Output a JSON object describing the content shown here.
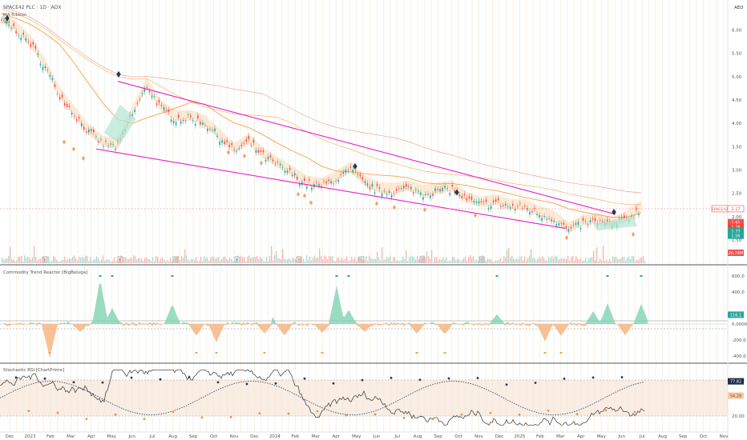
{
  "header": {
    "symbol_line": "SPACE42 PLC · 1D · ADX",
    "indicator_1": "MA Ribbon",
    "indicator_2": "Vol",
    "currency": "AED"
  },
  "colors": {
    "up": "#26a69a",
    "down": "#ef5350",
    "magenta": "#e91ec8",
    "orange": "#f7a24a",
    "navy": "#1d3a5c",
    "marker_up": "#f2a06a",
    "marker_down": "#1f3b5a",
    "green_area": "#b2e6d4",
    "orange_area": "#f9d9b5",
    "ctr_pos": "#7fd3b3",
    "ctr_neg": "#f5b27a",
    "rsi_line": "#333333",
    "rsi_band": "#f6e6d8"
  },
  "price_panel": {
    "y_ticks": [
      "6.00",
      "5.50",
      "5.00",
      "4.50",
      "4.00",
      "3.50",
      "3.00",
      "2.50",
      "2.00",
      "1.50"
    ],
    "badges": [
      {
        "label": "SPACE42",
        "value": "2.17",
        "color": "#ef5350",
        "text_color": "#ef5350"
      },
      {
        "label": "",
        "value": "1.91",
        "color": "#ef5350",
        "text_color": "#ffffff"
      },
      {
        "label": "",
        "value": "1.78",
        "color": "#f44336",
        "text_color": "#ffffff"
      },
      {
        "label": "",
        "value": "1.77",
        "color": "#26a69a",
        "text_color": "#ffffff"
      },
      {
        "label": "",
        "value": "1.56",
        "color": "#26a69a",
        "text_color": "#ffffff"
      },
      {
        "label": "",
        "value": "26.78M",
        "color": "#ef5350",
        "text_color": "#ffffff"
      }
    ],
    "earnings_label": "E"
  },
  "ctr_panel": {
    "title": "Commodity Trend Reactor [BigBeluga]",
    "y_ticks": [
      "600.0",
      "400.0",
      "0.0000",
      "-200.0",
      "-400.0"
    ],
    "badge_value": "116.1"
  },
  "rsi_panel": {
    "title": "Stochastic RSI [ChartPrime]",
    "y_ticks": [
      "80.00",
      "20.00"
    ],
    "badge_top": "77.82",
    "badge_mid": "54.28"
  },
  "x_axis": {
    "labels": [
      "Dec",
      "2023",
      "Feb",
      "Mar",
      "Apr",
      "May",
      "Jun",
      "Jul",
      "Aug",
      "Sep",
      "Oct",
      "Nov",
      "Dec",
      "2024",
      "Feb",
      "Mar",
      "Apr",
      "May",
      "Jun",
      "Jul",
      "Aug",
      "Sep",
      "Oct",
      "Nov",
      "Dec",
      "2025",
      "Feb",
      "Mar",
      "Apr",
      "May",
      "Jun",
      "Jul",
      "Aug",
      "Sep",
      "Oct",
      "Nov"
    ]
  },
  "chart_data": {
    "type": "line",
    "title": "SPACE42 PLC · 1D · ADX",
    "x_months": [
      "Dec",
      "2023",
      "Feb",
      "Mar",
      "Apr",
      "May",
      "Jun",
      "Jul",
      "Aug",
      "Sep",
      "Oct",
      "Nov",
      "Dec",
      "2024",
      "Feb",
      "Mar",
      "Apr",
      "May",
      "Jun",
      "Jul",
      "Aug",
      "Sep",
      "Oct",
      "Nov",
      "Dec",
      "2025",
      "Feb",
      "Mar",
      "Apr",
      "May",
      "Jun",
      "Jul"
    ],
    "price_series": [
      {
        "name": "Close",
        "values": [
          6.2,
          6.0,
          5.7,
          5.2,
          4.6,
          4.2,
          3.8,
          3.55,
          3.5,
          4.2,
          4.8,
          4.3,
          4.1,
          4.1,
          4.0,
          3.7,
          3.4,
          3.6,
          3.3,
          3.1,
          2.9,
          2.7,
          2.65,
          2.8,
          3.0,
          2.7,
          2.55,
          2.55,
          2.6,
          2.5,
          2.55,
          2.6,
          2.35,
          2.25,
          2.3,
          2.2,
          2.2,
          2.05,
          1.95,
          1.7,
          1.85,
          1.9,
          1.8,
          1.95,
          2.17
        ]
      }
    ],
    "trend_lines": [
      {
        "name": "upper",
        "from": {
          "x": "Apr 2023",
          "y": 4.9
        },
        "to": {
          "x": "Jun 2025",
          "y": 2.05
        }
      },
      {
        "name": "lower",
        "from": {
          "x": "Mar 2023",
          "y": 3.45
        },
        "to": {
          "x": "Feb 2025",
          "y": 1.75
        }
      }
    ],
    "ylim": [
      1.5,
      6.3
    ],
    "ctr_ylim": [
      -450,
      650
    ],
    "rsi_ylim": [
      0,
      100
    ]
  }
}
